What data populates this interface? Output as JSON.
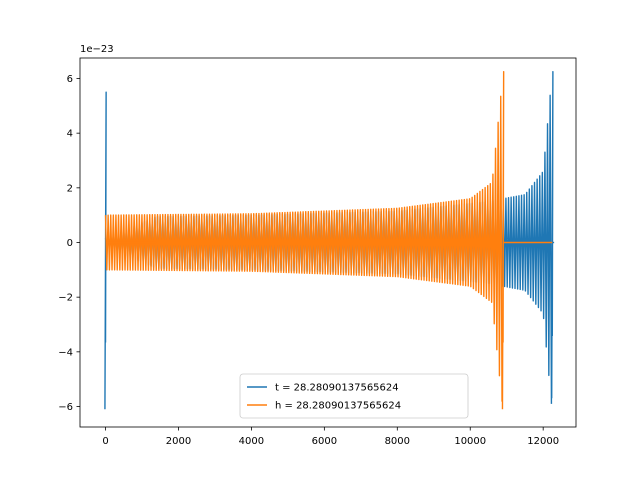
{
  "chart_data": {
    "type": "line",
    "title": "",
    "xlabel": "",
    "ylabel": "",
    "offset_text": "1e−23",
    "xlim": [
      -700,
      12900
    ],
    "ylim": [
      -6.75,
      6.75
    ],
    "xticks": [
      0,
      2000,
      4000,
      6000,
      8000,
      10000,
      12000
    ],
    "xtick_labels": [
      "0",
      "2000",
      "4000",
      "6000",
      "8000",
      "10000",
      "12000"
    ],
    "yticks": [
      -6,
      -4,
      -2,
      0,
      2,
      4,
      6
    ],
    "ytick_labels": [
      "−6",
      "−4",
      "−2",
      "0",
      "2",
      "4",
      "6"
    ],
    "grid": false,
    "legend_position": "lower-center",
    "series": [
      {
        "name": "t = 28.28090137565624",
        "color": "#1f77b4",
        "segments": [
          {
            "kind": "spike",
            "x": 0,
            "ymin": -6.1,
            "ymax": 5.5
          },
          {
            "kind": "oscillation",
            "x": [
              0,
              1400,
              4000,
              8000,
              10500,
              11500,
              12000,
              12250
            ],
            "amplitude": [
              0.15,
              0.95,
              1.0,
              1.15,
              1.5,
              1.75,
              2.6,
              6.25
            ]
          },
          {
            "kind": "spike",
            "x": 12250,
            "ymin": -5.7,
            "ymax": 6.25
          },
          {
            "kind": "flat",
            "x": [
              12250,
              12300
            ],
            "y": 0
          }
        ]
      },
      {
        "name": "h = 28.28090137565624",
        "color": "#ff7f0e",
        "segments": [
          {
            "kind": "oscillation",
            "x": [
              0,
              4000,
              8000,
              10000,
              10600,
              10900
            ],
            "amplitude": [
              1.0,
              1.05,
              1.25,
              1.6,
              2.2,
              6.2
            ]
          },
          {
            "kind": "spike",
            "x": 10900,
            "ymin": -6.1,
            "ymax": 6.25
          },
          {
            "kind": "flat",
            "x": [
              10900,
              12250
            ],
            "y": 0
          },
          {
            "kind": "flat",
            "x": [
              0,
              1400
            ],
            "y": 0
          }
        ]
      }
    ]
  }
}
